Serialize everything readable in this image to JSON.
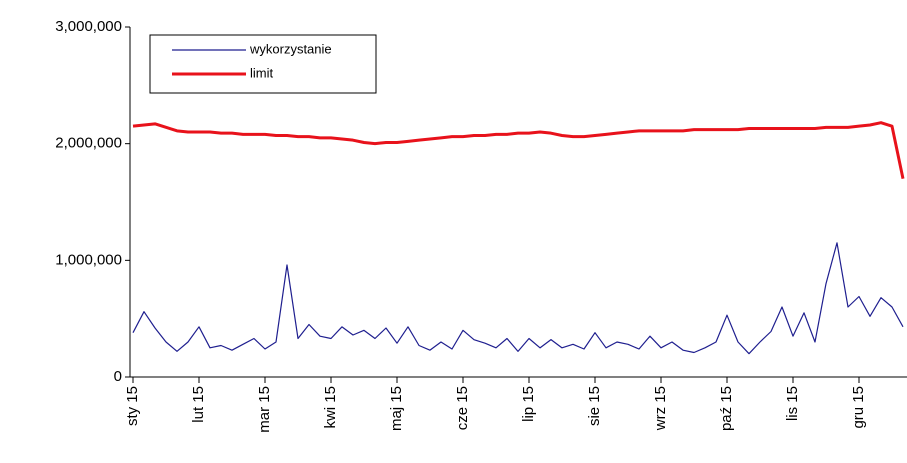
{
  "chart_data": {
    "type": "line",
    "categories": [
      "sty 15",
      null,
      null,
      null,
      null,
      null,
      "lut 15",
      null,
      null,
      null,
      null,
      null,
      "mar 15",
      null,
      null,
      null,
      null,
      null,
      "kwi 15",
      null,
      null,
      null,
      null,
      null,
      "maj 15",
      null,
      null,
      null,
      null,
      null,
      "cze 15",
      null,
      null,
      null,
      null,
      null,
      "lip 15",
      null,
      null,
      null,
      null,
      null,
      "sie 15",
      null,
      null,
      null,
      null,
      null,
      "wrz 15",
      null,
      null,
      null,
      null,
      null,
      "paź 15",
      null,
      null,
      null,
      null,
      null,
      "lis 15",
      null,
      null,
      null,
      null,
      null,
      "gru 15",
      null,
      null,
      null,
      null
    ],
    "series": [
      {
        "name": "wykorzystanie",
        "color": "#1f1f8f",
        "values": [
          380000,
          560000,
          420000,
          300000,
          220000,
          300000,
          430000,
          250000,
          270000,
          230000,
          280000,
          330000,
          240000,
          300000,
          960000,
          330000,
          450000,
          350000,
          330000,
          430000,
          360000,
          400000,
          330000,
          420000,
          290000,
          430000,
          270000,
          230000,
          300000,
          240000,
          400000,
          320000,
          290000,
          250000,
          330000,
          220000,
          330000,
          250000,
          320000,
          250000,
          280000,
          240000,
          380000,
          250000,
          300000,
          280000,
          240000,
          350000,
          250000,
          300000,
          230000,
          210000,
          250000,
          300000,
          530000,
          300000,
          200000,
          300000,
          390000,
          600000,
          350000,
          550000,
          300000,
          800000,
          1150000,
          600000,
          690000,
          520000,
          680000,
          600000,
          430000
        ]
      },
      {
        "name": "limit",
        "color": "#e8121b",
        "values": [
          2150000,
          2160000,
          2170000,
          2140000,
          2110000,
          2100000,
          2100000,
          2100000,
          2090000,
          2090000,
          2080000,
          2080000,
          2080000,
          2070000,
          2070000,
          2060000,
          2060000,
          2050000,
          2050000,
          2040000,
          2030000,
          2010000,
          2000000,
          2010000,
          2010000,
          2020000,
          2030000,
          2040000,
          2050000,
          2060000,
          2060000,
          2070000,
          2070000,
          2080000,
          2080000,
          2090000,
          2090000,
          2100000,
          2090000,
          2070000,
          2060000,
          2060000,
          2070000,
          2080000,
          2090000,
          2100000,
          2110000,
          2110000,
          2110000,
          2110000,
          2110000,
          2120000,
          2120000,
          2120000,
          2120000,
          2120000,
          2130000,
          2130000,
          2130000,
          2130000,
          2130000,
          2130000,
          2130000,
          2140000,
          2140000,
          2140000,
          2150000,
          2160000,
          2180000,
          2150000,
          1700000
        ]
      }
    ],
    "ylim": [
      0,
      3000000
    ],
    "yticks": [
      0,
      {
        "value": 1000000,
        "label": "1,000,000"
      },
      {
        "value": 2000000,
        "label": "2,000,000"
      },
      {
        "value": 3000000,
        "label": "3,000,000"
      }
    ],
    "legend": "top-left"
  }
}
